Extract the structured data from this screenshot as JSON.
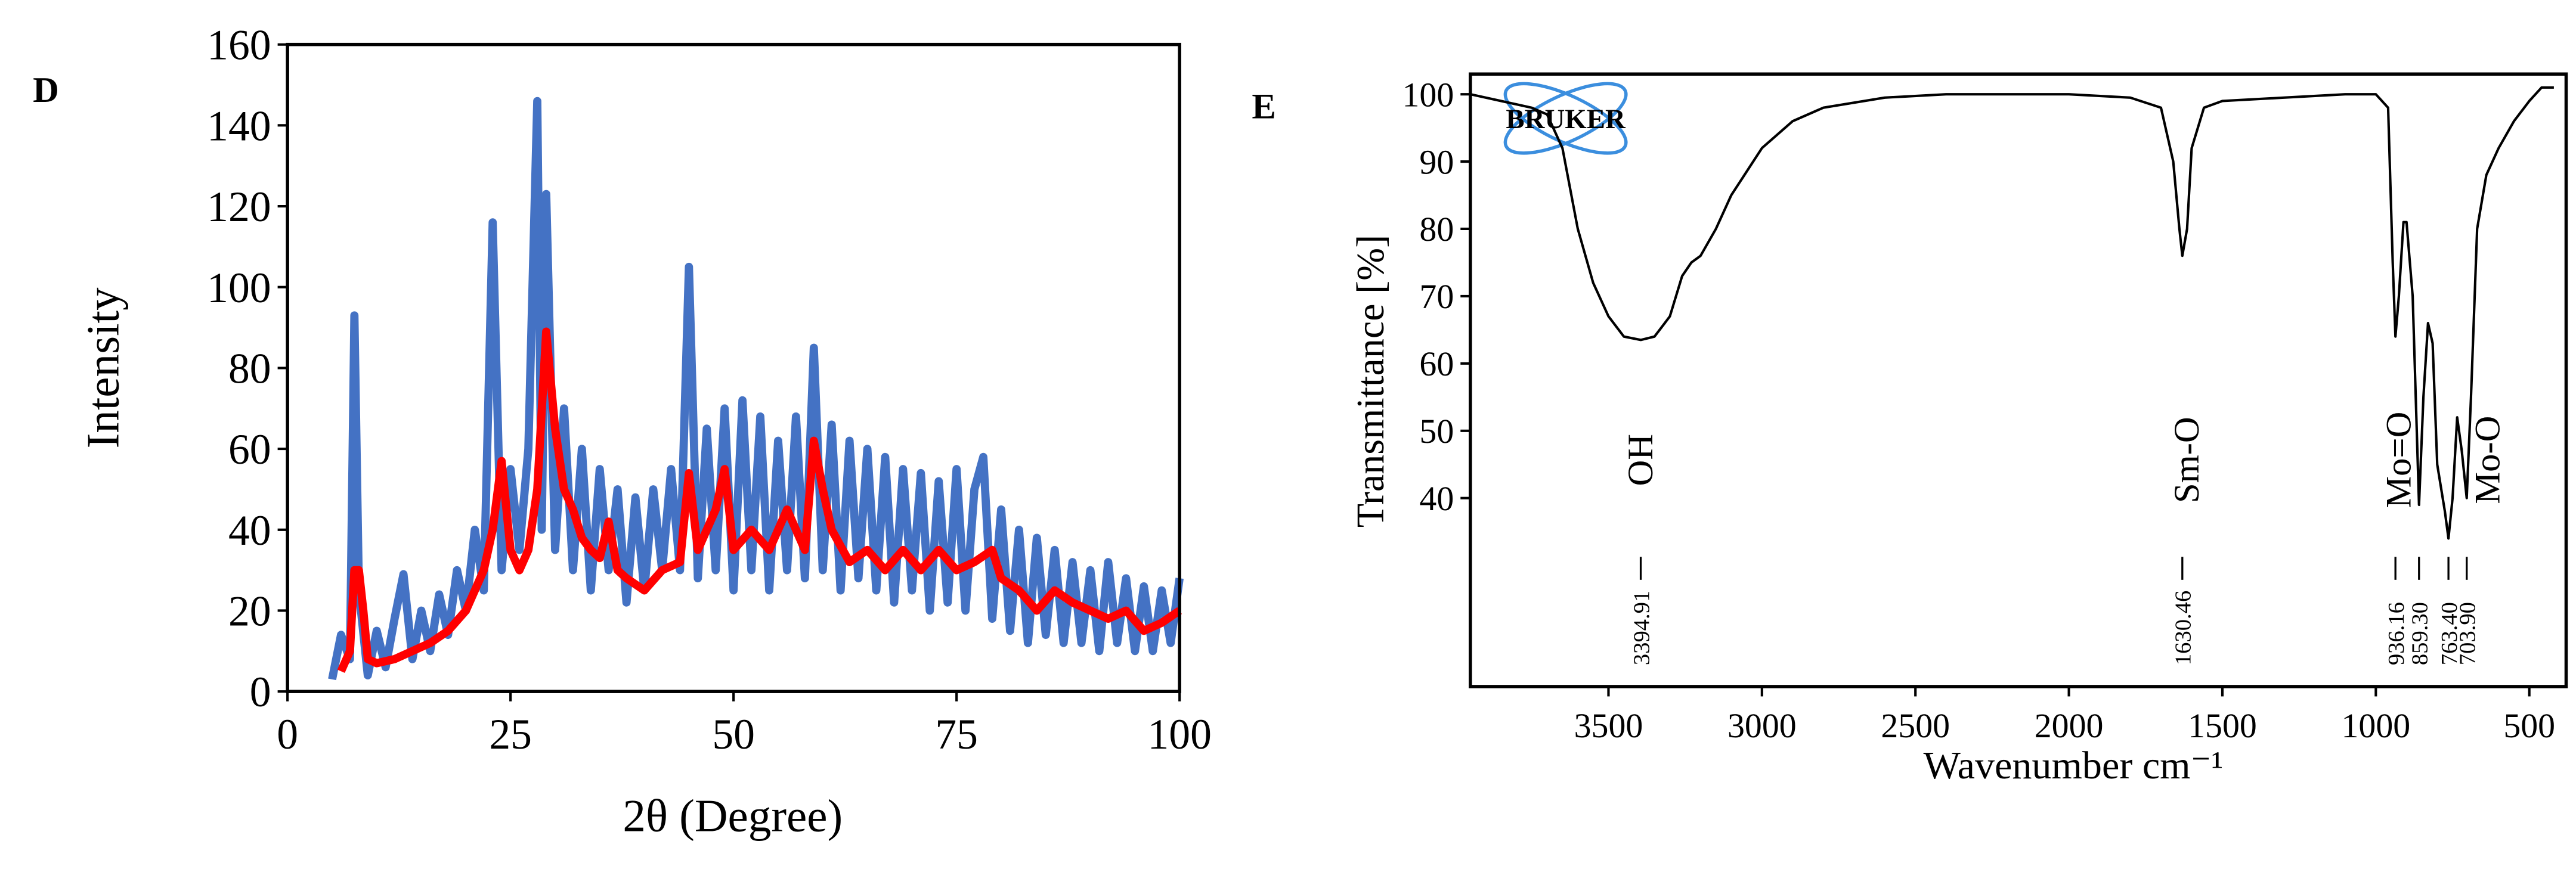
{
  "chart_data": [
    {
      "type": "line",
      "panel": "D",
      "xlabel": "2θ (Degree)",
      "ylabel": "Intensity",
      "xlim": [
        0,
        100
      ],
      "xticks": [
        0,
        25,
        50,
        75,
        100
      ],
      "ylim": [
        0,
        160
      ],
      "yticks": [
        0,
        20,
        40,
        60,
        80,
        100,
        120,
        140,
        160
      ],
      "series": [
        {
          "color": "#4472c4",
          "x": [
            5,
            6,
            7,
            7.5,
            8,
            9,
            10,
            11,
            12,
            13,
            14,
            15,
            16,
            17,
            18,
            19,
            20,
            21,
            22,
            23,
            24,
            25,
            26,
            27,
            28,
            28.5,
            29,
            30,
            31,
            32,
            33,
            34,
            35,
            36,
            37,
            38,
            39,
            40,
            41,
            42,
            43,
            44,
            45,
            46,
            47,
            48,
            49,
            50,
            51,
            52,
            53,
            54,
            55,
            56,
            57,
            58,
            59,
            60,
            61,
            62,
            63,
            64,
            65,
            66,
            67,
            68,
            69,
            70,
            71,
            72,
            73,
            74,
            75,
            76,
            77,
            78,
            79,
            80,
            81,
            82,
            83,
            84,
            85,
            86,
            87,
            88,
            89,
            90,
            91,
            92,
            93,
            94,
            95,
            96,
            97,
            98,
            99,
            100
          ],
          "values": [
            3,
            14,
            8,
            93,
            25,
            4,
            15,
            6,
            18,
            29,
            8,
            20,
            10,
            24,
            14,
            30,
            20,
            40,
            25,
            116,
            30,
            55,
            35,
            60,
            146,
            40,
            123,
            35,
            70,
            30,
            60,
            25,
            55,
            30,
            50,
            22,
            48,
            25,
            50,
            30,
            55,
            30,
            105,
            28,
            65,
            30,
            70,
            25,
            72,
            30,
            68,
            25,
            62,
            30,
            68,
            28,
            85,
            30,
            66,
            25,
            62,
            28,
            60,
            25,
            58,
            22,
            55,
            25,
            54,
            20,
            52,
            22,
            55,
            20,
            50,
            58,
            18,
            45,
            15,
            40,
            12,
            38,
            14,
            35,
            12,
            32,
            12,
            30,
            10,
            32,
            12,
            28,
            10,
            26,
            10,
            25,
            12,
            28
          ]
        },
        {
          "color": "#ff0000",
          "x": [
            6,
            7,
            7.5,
            8,
            8.5,
            9,
            10,
            12,
            14,
            16,
            18,
            20,
            22,
            23,
            24,
            25,
            26,
            27,
            28,
            29,
            30,
            31,
            32,
            33,
            34,
            35,
            36,
            37,
            38,
            40,
            42,
            44,
            45,
            46,
            47,
            48,
            49,
            50,
            52,
            54,
            56,
            58,
            59,
            60,
            61,
            63,
            65,
            67,
            69,
            71,
            73,
            75,
            77,
            79,
            80,
            82,
            84,
            86,
            88,
            90,
            92,
            94,
            96,
            98,
            100
          ],
          "values": [
            5,
            10,
            30,
            30,
            20,
            8,
            7,
            8,
            10,
            12,
            15,
            20,
            30,
            40,
            57,
            35,
            30,
            35,
            50,
            89,
            65,
            50,
            45,
            38,
            35,
            33,
            42,
            30,
            28,
            25,
            30,
            32,
            54,
            35,
            40,
            45,
            55,
            35,
            40,
            35,
            45,
            35,
            62,
            50,
            40,
            32,
            35,
            30,
            35,
            30,
            35,
            30,
            32,
            35,
            28,
            25,
            20,
            25,
            22,
            20,
            18,
            20,
            15,
            17,
            20
          ]
        }
      ]
    },
    {
      "type": "line",
      "panel": "E",
      "logo": "BRUKER",
      "xlabel": "Wavenumber cm⁻¹",
      "ylabel": "Transmittance [%]",
      "xlim": [
        3950,
        380
      ],
      "xticks": [
        3500,
        3000,
        2500,
        2000,
        1500,
        1000,
        500
      ],
      "ylim": [
        12,
        103
      ],
      "yticks": [
        40,
        50,
        60,
        70,
        80,
        90,
        100
      ],
      "x": [
        3950,
        3850,
        3750,
        3700,
        3650,
        3600,
        3550,
        3500,
        3450,
        3394.91,
        3350,
        3300,
        3260,
        3230,
        3200,
        3150,
        3100,
        3000,
        2900,
        2800,
        2600,
        2400,
        2000,
        1800,
        1700,
        1660,
        1640,
        1630.46,
        1615,
        1600,
        1560,
        1500,
        1300,
        1100,
        1000,
        960,
        945,
        936.16,
        925,
        910,
        900,
        880,
        859.3,
        845,
        830,
        815,
        800,
        775,
        763.4,
        750,
        735,
        720,
        703.9,
        690,
        670,
        640,
        600,
        550,
        500,
        460,
        420
      ],
      "series": [
        {
          "color": "#000000",
          "values": [
            100,
            99,
            98,
            97,
            92,
            80,
            72,
            67,
            64,
            63.5,
            64,
            67,
            73,
            75,
            76,
            80,
            85,
            92,
            96,
            98,
            99.5,
            100,
            100,
            99.5,
            98,
            90,
            80,
            76,
            80,
            92,
            98,
            99,
            99.5,
            100,
            100,
            98,
            75,
            64,
            70,
            81,
            81,
            70,
            39,
            55,
            66,
            63,
            45,
            38,
            34,
            40,
            52,
            47,
            40,
            55,
            80,
            88,
            92,
            96,
            99,
            101,
            101
          ]
        }
      ],
      "peaks": [
        3394.91,
        1630.46,
        936.16,
        {
          "value": 859.3,
          "label": "859.30"
        },
        {
          "value": 763.4,
          "label": "763.40"
        },
        {
          "value": 703.9,
          "label": "703.90"
        }
      ],
      "annotations": [
        {
          "text": "OH",
          "x": 3400
        },
        {
          "text": "Sm-O",
          "x": 1620
        },
        {
          "text": "Mo=O",
          "x": 930
        },
        {
          "text": "Mo-O",
          "x": 640
        }
      ]
    }
  ]
}
